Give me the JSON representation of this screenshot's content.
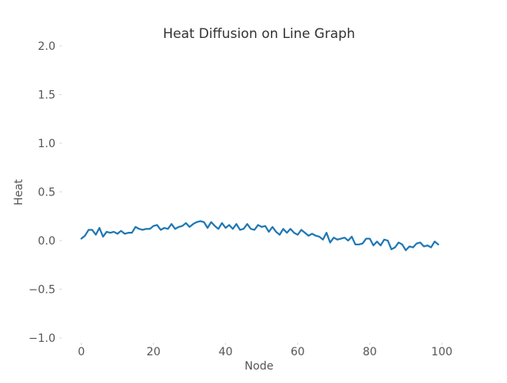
{
  "chart_data": {
    "type": "line",
    "title": "Heat Diffusion on Line Graph",
    "xlabel": "Node",
    "ylabel": "Heat",
    "xlim": [
      -5,
      104
    ],
    "ylim": [
      -1.0,
      2.0
    ],
    "x_ticks": [
      0,
      20,
      40,
      60,
      80,
      100
    ],
    "x_tick_labels": [
      "0",
      "20",
      "40",
      "60",
      "80",
      "100"
    ],
    "y_ticks": [
      -1.0,
      -0.5,
      0.0,
      0.5,
      1.0,
      1.5,
      2.0
    ],
    "y_tick_labels": [
      "−1.0",
      "−0.5",
      "0.0",
      "0.5",
      "1.0",
      "1.5",
      "2.0"
    ],
    "grid": false,
    "legend": "none",
    "series": [
      {
        "color": "#1f77b4",
        "x": [
          0,
          1,
          2,
          3,
          4,
          5,
          6,
          7,
          8,
          9,
          10,
          11,
          12,
          13,
          14,
          15,
          16,
          17,
          18,
          19,
          20,
          21,
          22,
          23,
          24,
          25,
          26,
          27,
          28,
          29,
          30,
          31,
          32,
          33,
          34,
          35,
          36,
          37,
          38,
          39,
          40,
          41,
          42,
          43,
          44,
          45,
          46,
          47,
          48,
          49,
          50,
          51,
          52,
          53,
          54,
          55,
          56,
          57,
          58,
          59,
          60,
          61,
          62,
          63,
          64,
          65,
          66,
          67,
          68,
          69,
          70,
          71,
          72,
          73,
          74,
          75,
          76,
          77,
          78,
          79,
          80,
          81,
          82,
          83,
          84,
          85,
          86,
          87,
          88,
          89,
          90,
          91,
          92,
          93,
          94,
          95,
          96,
          97,
          98,
          99
        ],
        "y": [
          0.02,
          0.05,
          0.11,
          0.11,
          0.06,
          0.13,
          0.04,
          0.09,
          0.08,
          0.09,
          0.07,
          0.1,
          0.07,
          0.08,
          0.08,
          0.14,
          0.12,
          0.11,
          0.12,
          0.12,
          0.15,
          0.16,
          0.11,
          0.13,
          0.12,
          0.17,
          0.12,
          0.14,
          0.15,
          0.18,
          0.14,
          0.17,
          0.19,
          0.2,
          0.19,
          0.13,
          0.19,
          0.15,
          0.12,
          0.18,
          0.13,
          0.16,
          0.12,
          0.17,
          0.11,
          0.12,
          0.17,
          0.12,
          0.11,
          0.16,
          0.14,
          0.15,
          0.09,
          0.14,
          0.09,
          0.06,
          0.12,
          0.08,
          0.12,
          0.08,
          0.06,
          0.11,
          0.08,
          0.05,
          0.07,
          0.05,
          0.04,
          0.01,
          0.08,
          -0.02,
          0.03,
          0.01,
          0.02,
          0.03,
          0.0,
          0.04,
          -0.04,
          -0.04,
          -0.03,
          0.02,
          0.02,
          -0.05,
          -0.01,
          -0.05,
          0.01,
          0.0,
          -0.09,
          -0.07,
          -0.02,
          -0.04,
          -0.1,
          -0.06,
          -0.07,
          -0.03,
          -0.02,
          -0.06,
          -0.05,
          -0.07,
          -0.01,
          -0.04
        ]
      }
    ]
  }
}
